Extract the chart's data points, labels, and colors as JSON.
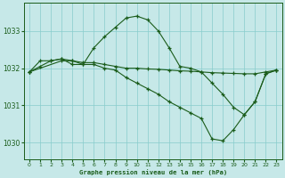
{
  "background_color": "#c6e8e8",
  "grid_color": "#88cccc",
  "line_color": "#1a5c1a",
  "marker_color": "#1a5c1a",
  "xlabel": "Graphe pression niveau de la mer (hPa)",
  "xlabel_color": "#1a5c1a",
  "xlim": [
    -0.5,
    23.5
  ],
  "ylim": [
    1029.55,
    1033.75
  ],
  "yticks": [
    1030,
    1031,
    1032,
    1033
  ],
  "xticks": [
    0,
    1,
    2,
    3,
    4,
    5,
    6,
    7,
    8,
    9,
    10,
    11,
    12,
    13,
    14,
    15,
    16,
    17,
    18,
    19,
    20,
    21,
    22,
    23
  ],
  "series": [
    {
      "x": [
        0,
        1,
        2,
        3,
        4,
        5,
        6,
        7,
        8,
        9,
        10,
        11,
        12,
        13,
        14,
        15,
        16,
        17,
        18,
        19,
        20,
        21,
        22,
        23
      ],
      "y": [
        1031.9,
        1032.05,
        1032.2,
        1032.25,
        1032.1,
        1032.1,
        1032.55,
        1032.85,
        1033.1,
        1033.35,
        1033.4,
        1033.3,
        1033.0,
        1032.55,
        1032.05,
        1032.0,
        1031.9,
        1031.6,
        1031.3,
        1030.95,
        1030.75,
        1031.1,
        1031.85,
        1031.95
      ]
    },
    {
      "x": [
        0,
        1,
        2,
        3,
        4,
        5,
        6,
        7,
        8,
        9,
        10,
        11,
        12,
        13,
        14,
        15,
        16,
        17,
        18,
        19,
        20,
        21,
        22,
        23
      ],
      "y": [
        1031.9,
        1032.2,
        1032.2,
        1032.25,
        1032.2,
        1032.1,
        1032.1,
        1032.0,
        1031.95,
        1031.75,
        1031.6,
        1031.45,
        1031.3,
        1031.1,
        1030.95,
        1030.8,
        1030.65,
        1030.1,
        1030.05,
        1030.35,
        1030.75,
        1031.1,
        1031.85,
        1031.95
      ]
    },
    {
      "x": [
        0,
        3,
        4,
        5,
        6,
        7,
        8,
        9,
        10,
        11,
        12,
        13,
        14,
        15,
        16,
        17,
        18,
        19,
        20,
        21,
        22,
        23
      ],
      "y": [
        1031.9,
        1032.2,
        1032.2,
        1032.15,
        1032.15,
        1032.1,
        1032.05,
        1032.0,
        1032.0,
        1031.98,
        1031.97,
        1031.95,
        1031.93,
        1031.92,
        1031.9,
        1031.88,
        1031.87,
        1031.86,
        1031.85,
        1031.85,
        1031.9,
        1031.95
      ]
    }
  ]
}
